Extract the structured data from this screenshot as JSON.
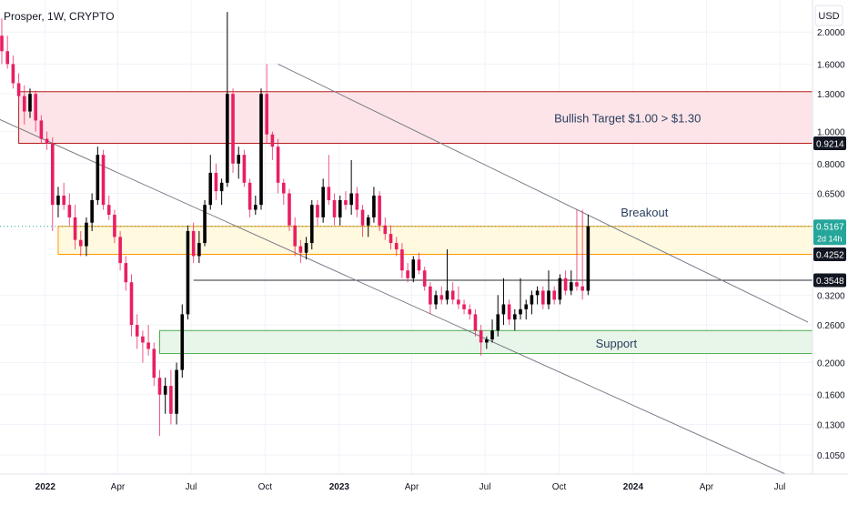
{
  "chart_data": {
    "type": "candlestick",
    "symbol_line": "Prosper, 1W, CRYPTO",
    "currency": "USD",
    "y_scale": "log",
    "ylim": [
      0.092,
      2.5
    ],
    "xlim": [
      "2021-11-08",
      "2024-08-05"
    ],
    "grid": true,
    "y_ticks": [
      "2.0000",
      "1.6000",
      "1.3000",
      "1.0000",
      "0.8000",
      "0.6500",
      "0.3200",
      "0.2600",
      "0.2000",
      "0.1600",
      "0.1300",
      "0.1050"
    ],
    "x_ticks": [
      {
        "date": "2022-01-01",
        "label": "2022",
        "bold": true
      },
      {
        "date": "2022-04-01",
        "label": "Apr",
        "bold": false
      },
      {
        "date": "2022-07-01",
        "label": "Jul",
        "bold": false
      },
      {
        "date": "2022-10-01",
        "label": "Oct",
        "bold": false
      },
      {
        "date": "2023-01-01",
        "label": "2023",
        "bold": true
      },
      {
        "date": "2023-04-01",
        "label": "Apr",
        "bold": false
      },
      {
        "date": "2023-07-01",
        "label": "Jul",
        "bold": false
      },
      {
        "date": "2023-10-01",
        "label": "Oct",
        "bold": false
      },
      {
        "date": "2024-01-01",
        "label": "2024",
        "bold": true
      },
      {
        "date": "2024-04-01",
        "label": "Apr",
        "bold": false
      },
      {
        "date": "2024-07-01",
        "label": "Jul",
        "bold": false
      }
    ],
    "price_badges": [
      {
        "value": 0.9214,
        "label": "0.9214",
        "style": "dark"
      },
      {
        "value": 0.5167,
        "label": "0.5167",
        "sublabel": "2d 14h",
        "style": "green"
      },
      {
        "value": 0.4252,
        "label": "0.4252",
        "style": "dark"
      },
      {
        "value": 0.3548,
        "label": "0.3548",
        "style": "dark"
      }
    ],
    "zones": [
      {
        "name": "bullish-target-zone",
        "from_date": "2021-11-29",
        "low": 0.9214,
        "high": 1.32,
        "fill": "#fce4e8",
        "stroke": "#b71c1c"
      },
      {
        "name": "resistance-zone",
        "from_date": "2022-01-17",
        "low": 0.4252,
        "high": 0.5167,
        "fill": "#fff9e0",
        "stroke": "#ff9800"
      },
      {
        "name": "support-zone",
        "from_date": "2022-05-23",
        "low": 0.213,
        "high": 0.25,
        "fill": "#e8f5e9",
        "stroke": "#4caf50"
      }
    ],
    "levels": [
      {
        "name": "level-line",
        "from_date": "2022-07-04",
        "value": 0.3548
      }
    ],
    "trendlines": [
      {
        "name": "upper-channel-line",
        "points": [
          [
            "2022-10-17",
            1.6
          ],
          [
            "2024-08-05",
            0.265
          ]
        ]
      },
      {
        "name": "lower-channel-line",
        "points": [
          [
            "2021-11-01",
            1.1
          ],
          [
            "2024-07-08",
            0.092
          ]
        ]
      }
    ],
    "annotations": [
      {
        "text": "Bullish Target $1.00 > $1.30",
        "date": "2023-12-25",
        "value": 1.1
      },
      {
        "text": "Breakout",
        "date": "2024-01-15",
        "value": 0.57
      },
      {
        "text": "Support",
        "date": "2023-12-11",
        "value": 0.229
      }
    ],
    "candles_start": "2021-11-08",
    "candles": [
      [
        1.95,
        2.2,
        1.6,
        1.75
      ],
      [
        1.75,
        1.95,
        1.55,
        1.6
      ],
      [
        1.6,
        1.7,
        1.35,
        1.4
      ],
      [
        1.4,
        1.5,
        1.22,
        1.28
      ],
      [
        1.28,
        1.38,
        1.05,
        1.15
      ],
      [
        1.15,
        1.35,
        1.1,
        1.3
      ],
      [
        1.3,
        1.33,
        1.0,
        1.08
      ],
      [
        1.08,
        1.12,
        0.92,
        0.95
      ],
      [
        0.95,
        1.0,
        0.88,
        0.92
      ],
      [
        0.92,
        0.96,
        0.5,
        0.6
      ],
      [
        0.6,
        0.68,
        0.55,
        0.64
      ],
      [
        0.64,
        0.7,
        0.58,
        0.6
      ],
      [
        0.6,
        0.65,
        0.52,
        0.55
      ],
      [
        0.55,
        0.6,
        0.44,
        0.47
      ],
      [
        0.47,
        0.5,
        0.42,
        0.45
      ],
      [
        0.45,
        0.55,
        0.42,
        0.53
      ],
      [
        0.53,
        0.65,
        0.5,
        0.62
      ],
      [
        0.62,
        0.9,
        0.6,
        0.85
      ],
      [
        0.85,
        0.88,
        0.58,
        0.6
      ],
      [
        0.6,
        0.64,
        0.54,
        0.56
      ],
      [
        0.56,
        0.58,
        0.46,
        0.48
      ],
      [
        0.48,
        0.5,
        0.38,
        0.4
      ],
      [
        0.4,
        0.42,
        0.33,
        0.35
      ],
      [
        0.35,
        0.37,
        0.24,
        0.26
      ],
      [
        0.26,
        0.28,
        0.22,
        0.24
      ],
      [
        0.24,
        0.25,
        0.2,
        0.23
      ],
      [
        0.23,
        0.26,
        0.21,
        0.22
      ],
      [
        0.22,
        0.23,
        0.17,
        0.18
      ],
      [
        0.18,
        0.19,
        0.12,
        0.16
      ],
      [
        0.16,
        0.18,
        0.14,
        0.17
      ],
      [
        0.17,
        0.19,
        0.13,
        0.14
      ],
      [
        0.14,
        0.2,
        0.13,
        0.19
      ],
      [
        0.19,
        0.3,
        0.18,
        0.28
      ],
      [
        0.28,
        0.52,
        0.27,
        0.5
      ],
      [
        0.5,
        0.53,
        0.4,
        0.42
      ],
      [
        0.42,
        0.5,
        0.4,
        0.46
      ],
      [
        0.46,
        0.62,
        0.45,
        0.6
      ],
      [
        0.6,
        0.85,
        0.58,
        0.75
      ],
      [
        0.75,
        0.8,
        0.62,
        0.66
      ],
      [
        0.66,
        0.72,
        0.6,
        0.7
      ],
      [
        0.7,
        2.3,
        0.68,
        1.3
      ],
      [
        1.3,
        1.35,
        0.75,
        0.8
      ],
      [
        0.8,
        0.9,
        0.72,
        0.85
      ],
      [
        0.85,
        0.88,
        0.68,
        0.7
      ],
      [
        0.7,
        0.72,
        0.55,
        0.58
      ],
      [
        0.58,
        0.64,
        0.56,
        0.6
      ],
      [
        0.6,
        1.35,
        0.58,
        1.3
      ],
      [
        1.3,
        1.6,
        0.92,
        0.98
      ],
      [
        0.98,
        1.0,
        0.82,
        0.9
      ],
      [
        0.9,
        0.95,
        0.65,
        0.7
      ],
      [
        0.7,
        0.72,
        0.6,
        0.65
      ],
      [
        0.65,
        0.67,
        0.5,
        0.52
      ],
      [
        0.52,
        0.55,
        0.42,
        0.45
      ],
      [
        0.45,
        0.47,
        0.4,
        0.43
      ],
      [
        0.43,
        0.48,
        0.41,
        0.46
      ],
      [
        0.46,
        0.62,
        0.44,
        0.6
      ],
      [
        0.6,
        0.62,
        0.52,
        0.55
      ],
      [
        0.55,
        0.72,
        0.53,
        0.68
      ],
      [
        0.68,
        0.85,
        0.6,
        0.62
      ],
      [
        0.62,
        0.65,
        0.52,
        0.55
      ],
      [
        0.55,
        0.64,
        0.52,
        0.62
      ],
      [
        0.62,
        0.66,
        0.58,
        0.6
      ],
      [
        0.6,
        0.82,
        0.56,
        0.65
      ],
      [
        0.65,
        0.68,
        0.55,
        0.58
      ],
      [
        0.58,
        0.6,
        0.48,
        0.52
      ],
      [
        0.52,
        0.56,
        0.48,
        0.55
      ],
      [
        0.55,
        0.68,
        0.53,
        0.64
      ],
      [
        0.64,
        0.66,
        0.5,
        0.52
      ],
      [
        0.52,
        0.55,
        0.47,
        0.49
      ],
      [
        0.49,
        0.52,
        0.44,
        0.46
      ],
      [
        0.46,
        0.48,
        0.42,
        0.44
      ],
      [
        0.44,
        0.46,
        0.36,
        0.38
      ],
      [
        0.38,
        0.4,
        0.35,
        0.36
      ],
      [
        0.36,
        0.42,
        0.35,
        0.41
      ],
      [
        0.41,
        0.43,
        0.37,
        0.38
      ],
      [
        0.38,
        0.39,
        0.33,
        0.34
      ],
      [
        0.34,
        0.35,
        0.28,
        0.3
      ],
      [
        0.3,
        0.33,
        0.29,
        0.32
      ],
      [
        0.32,
        0.34,
        0.3,
        0.31
      ],
      [
        0.31,
        0.44,
        0.3,
        0.33
      ],
      [
        0.33,
        0.35,
        0.3,
        0.31
      ],
      [
        0.31,
        0.34,
        0.29,
        0.3
      ],
      [
        0.3,
        0.31,
        0.28,
        0.29
      ],
      [
        0.29,
        0.3,
        0.27,
        0.28
      ],
      [
        0.28,
        0.29,
        0.24,
        0.25
      ],
      [
        0.25,
        0.26,
        0.21,
        0.23
      ],
      [
        0.23,
        0.24,
        0.22,
        0.235
      ],
      [
        0.235,
        0.27,
        0.23,
        0.25
      ],
      [
        0.25,
        0.32,
        0.24,
        0.28
      ],
      [
        0.28,
        0.36,
        0.26,
        0.3
      ],
      [
        0.3,
        0.31,
        0.26,
        0.27
      ],
      [
        0.27,
        0.29,
        0.25,
        0.28
      ],
      [
        0.28,
        0.36,
        0.27,
        0.29
      ],
      [
        0.29,
        0.31,
        0.27,
        0.3
      ],
      [
        0.3,
        0.33,
        0.28,
        0.32
      ],
      [
        0.32,
        0.34,
        0.3,
        0.33
      ],
      [
        0.33,
        0.34,
        0.29,
        0.3
      ],
      [
        0.3,
        0.38,
        0.29,
        0.33
      ],
      [
        0.33,
        0.34,
        0.3,
        0.31
      ],
      [
        0.31,
        0.37,
        0.3,
        0.36
      ],
      [
        0.36,
        0.38,
        0.32,
        0.33
      ],
      [
        0.33,
        0.38,
        0.32,
        0.35
      ],
      [
        0.35,
        0.58,
        0.33,
        0.34
      ],
      [
        0.34,
        0.58,
        0.31,
        0.33
      ],
      [
        0.33,
        0.56,
        0.32,
        0.5167
      ]
    ]
  }
}
